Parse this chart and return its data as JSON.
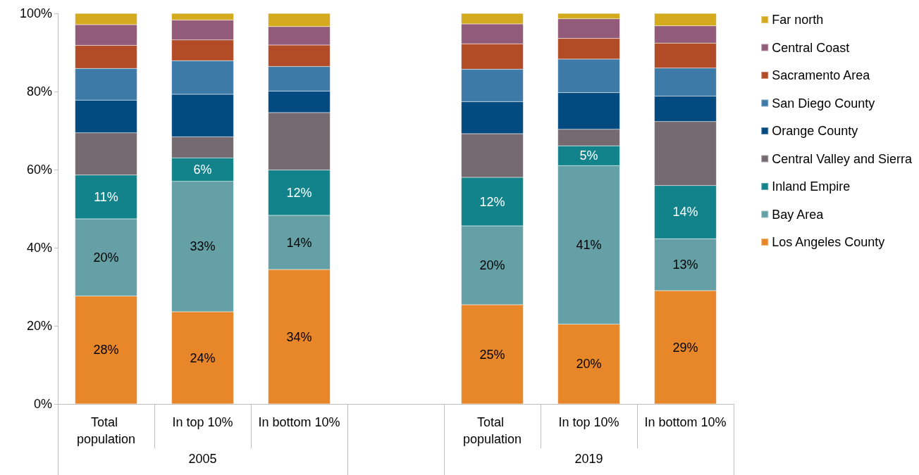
{
  "chart_data": {
    "type": "bar",
    "stacked": true,
    "categories": [
      "Total population",
      "In top 10%",
      "In bottom 10%",
      null,
      "Total population",
      "In top 10%",
      "In bottom 10%"
    ],
    "series": [
      {
        "name": "Los Angeles County",
        "color": "#e8862a",
        "values": [
          27.6,
          23.6,
          34.4,
          null,
          25.4,
          20.4,
          29.0
        ],
        "value_labels": [
          "28%",
          "24%",
          "34%",
          null,
          "25%",
          "20%",
          "29%"
        ]
      },
      {
        "name": "Bay Area",
        "color": "#64a0a6",
        "values": [
          19.8,
          33.4,
          13.9,
          null,
          20.2,
          40.6,
          13.3
        ],
        "value_labels": [
          "20%",
          "33%",
          "14%",
          null,
          "20%",
          "41%",
          "13%"
        ]
      },
      {
        "name": "Inland Empire",
        "color": "#12838a",
        "values": [
          11.2,
          6.0,
          11.6,
          null,
          12.4,
          5.1,
          13.6
        ],
        "value_labels": [
          "11%",
          "6%",
          "12%",
          null,
          "12%",
          "5%",
          "14%"
        ]
      },
      {
        "name": "Central Valley and Sierra",
        "color": "#766a71",
        "values": [
          10.8,
          5.4,
          14.7,
          null,
          11.2,
          4.2,
          16.4
        ]
      },
      {
        "name": "Orange County",
        "color": "#024a7f",
        "values": [
          8.4,
          10.9,
          5.5,
          null,
          8.2,
          9.4,
          6.5
        ]
      },
      {
        "name": "San Diego County",
        "color": "#3e7aa8",
        "values": [
          8.1,
          8.6,
          6.3,
          null,
          8.3,
          8.6,
          7.2
        ]
      },
      {
        "name": "Sacramento Area",
        "color": "#b24c27",
        "values": [
          5.9,
          5.3,
          5.5,
          null,
          6.5,
          5.3,
          6.4
        ]
      },
      {
        "name": "Central Coast",
        "color": "#925b79",
        "values": [
          5.3,
          5.1,
          4.7,
          null,
          5.1,
          5.0,
          4.4
        ]
      },
      {
        "name": "Far north",
        "color": "#d4aa1f",
        "values": [
          2.9,
          1.7,
          3.4,
          null,
          2.7,
          1.4,
          3.2
        ]
      }
    ],
    "ylim": [
      0,
      100
    ],
    "yticks": [
      {
        "value": 0,
        "label": "0%"
      },
      {
        "value": 20,
        "label": "20%"
      },
      {
        "value": 40,
        "label": "40%"
      },
      {
        "value": 60,
        "label": "60%"
      },
      {
        "value": 80,
        "label": "80%"
      },
      {
        "value": 100,
        "label": "100%"
      }
    ],
    "annotations": [
      "2005",
      "2019"
    ],
    "grid": false,
    "legend": "right"
  }
}
